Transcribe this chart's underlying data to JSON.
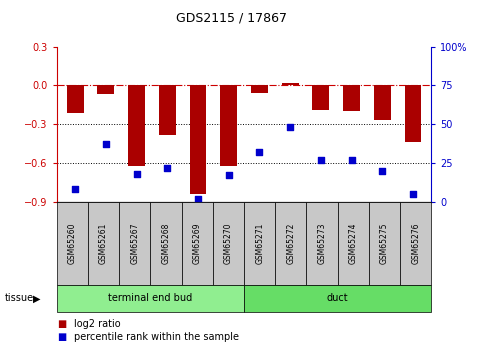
{
  "title": "GDS2115 / 17867",
  "samples": [
    "GSM65260",
    "GSM65261",
    "GSM65267",
    "GSM65268",
    "GSM65269",
    "GSM65270",
    "GSM65271",
    "GSM65272",
    "GSM65273",
    "GSM65274",
    "GSM65275",
    "GSM65276"
  ],
  "log2_ratio": [
    -0.21,
    -0.07,
    -0.62,
    -0.38,
    -0.84,
    -0.62,
    -0.06,
    0.02,
    -0.19,
    -0.2,
    -0.27,
    -0.44
  ],
  "percentile": [
    8,
    37,
    18,
    22,
    2,
    17,
    32,
    48,
    27,
    27,
    20,
    5
  ],
  "groups": [
    {
      "label": "terminal end bud",
      "start": 0,
      "end": 6,
      "color": "#90EE90"
    },
    {
      "label": "duct",
      "start": 6,
      "end": 12,
      "color": "#66DD66"
    }
  ],
  "bar_color": "#AA0000",
  "dot_color": "#0000CC",
  "ylim_left": [
    -0.9,
    0.3
  ],
  "ylim_right": [
    0,
    100
  ],
  "yticks_left": [
    -0.9,
    -0.6,
    -0.3,
    0.0,
    0.3
  ],
  "yticks_right": [
    0,
    25,
    50,
    75,
    100
  ],
  "hline_y": 0.0,
  "dotted_lines": [
    -0.3,
    -0.6
  ],
  "bar_width": 0.55,
  "legend_red_label": "log2 ratio",
  "legend_blue_label": "percentile rank within the sample",
  "tissue_label": "tissue",
  "background_color": "#ffffff",
  "plot_bg_color": "#ffffff",
  "left_axis_color": "#CC0000",
  "right_axis_color": "#0000CC"
}
